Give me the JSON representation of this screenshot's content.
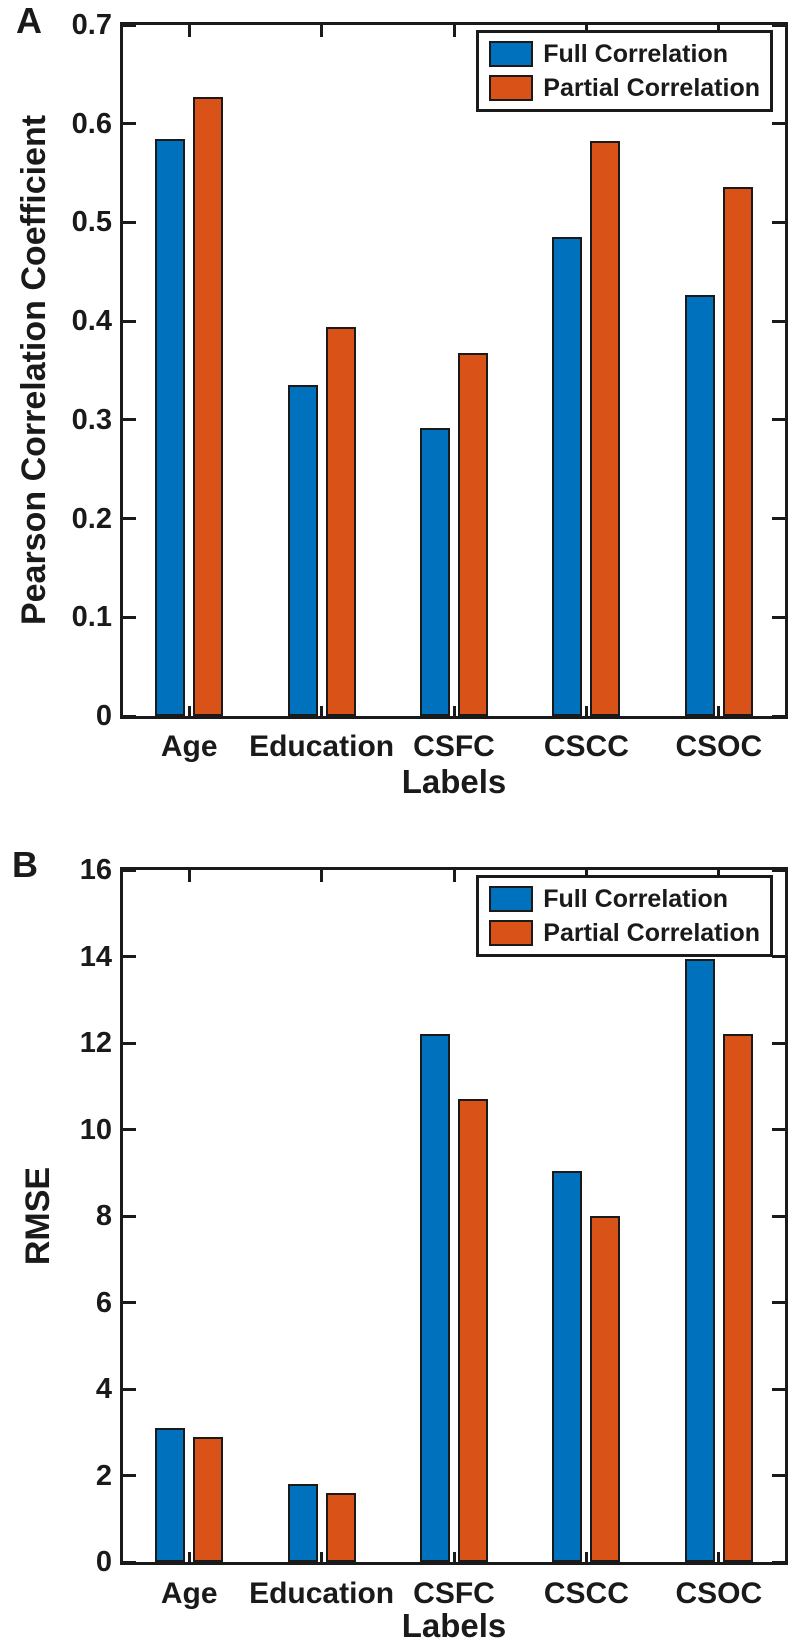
{
  "chart_data": [
    {
      "type": "bar",
      "panel_label": "A",
      "title": "",
      "xlabel": "Labels",
      "ylabel": "Pearson Correlation Coefficient",
      "categories": [
        "Age",
        "Education",
        "CSFC",
        "CSCC",
        "CSOC"
      ],
      "series": [
        {
          "name": "Full Correlation",
          "color": "#0072BD",
          "values": [
            0.585,
            0.335,
            0.292,
            0.485,
            0.427
          ]
        },
        {
          "name": "Partial Correlation",
          "color": "#D95319",
          "values": [
            0.627,
            0.394,
            0.368,
            0.583,
            0.536
          ]
        }
      ],
      "ylim": [
        0,
        0.7
      ],
      "ytick_step": 0.1,
      "ytick_labels": [
        "0",
        "0.1",
        "0.2",
        "0.3",
        "0.4",
        "0.5",
        "0.6",
        "0.7"
      ],
      "legend_position": "top-right",
      "grid": false,
      "axis_color": "#1a1a1a"
    },
    {
      "type": "bar",
      "panel_label": "B",
      "title": "",
      "xlabel": "Labels",
      "ylabel": "RMSE",
      "categories": [
        "Age",
        "Education",
        "CSFC",
        "CSCC",
        "CSOC"
      ],
      "series": [
        {
          "name": "Full Correlation",
          "color": "#0072BD",
          "values": [
            3.1,
            1.8,
            12.2,
            9.05,
            13.95
          ]
        },
        {
          "name": "Partial Correlation",
          "color": "#D95319",
          "values": [
            2.9,
            1.6,
            10.7,
            8.0,
            12.2
          ]
        }
      ],
      "ylim": [
        0,
        16
      ],
      "ytick_step": 2,
      "ytick_labels": [
        "0",
        "2",
        "4",
        "6",
        "8",
        "10",
        "12",
        "14",
        "16"
      ],
      "legend_position": "top-right",
      "grid": false,
      "axis_color": "#1a1a1a"
    }
  ]
}
